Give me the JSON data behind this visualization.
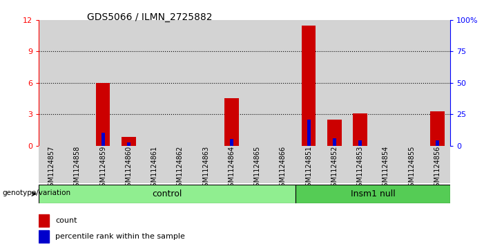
{
  "title": "GDS5066 / ILMN_2725882",
  "samples": [
    "GSM1124857",
    "GSM1124858",
    "GSM1124859",
    "GSM1124860",
    "GSM1124861",
    "GSM1124862",
    "GSM1124863",
    "GSM1124864",
    "GSM1124865",
    "GSM1124866",
    "GSM1124851",
    "GSM1124852",
    "GSM1124853",
    "GSM1124854",
    "GSM1124855",
    "GSM1124856"
  ],
  "count_values": [
    0,
    0,
    6.0,
    0.8,
    0,
    0,
    0,
    4.5,
    0,
    0,
    11.5,
    2.5,
    3.1,
    0,
    0,
    3.3
  ],
  "percentile_values": [
    0,
    0,
    1.2,
    0.3,
    0,
    0,
    0,
    0.6,
    0,
    0,
    2.5,
    0.7,
    0.5,
    0,
    0,
    0.5
  ],
  "count_color": "#cc0000",
  "percentile_color": "#0000cc",
  "bar_bg_color": "#d3d3d3",
  "control_bg": "#90ee90",
  "insm1_bg": "#55cc55",
  "ylim_left": [
    0,
    12
  ],
  "ylim_right": [
    0,
    100
  ],
  "yticks_left": [
    0,
    3,
    6,
    9,
    12
  ],
  "yticks_right": [
    0,
    25,
    50,
    75,
    100
  ],
  "ytick_labels_right": [
    "0",
    "25",
    "50",
    "75",
    "100%"
  ],
  "control_label": "control",
  "insm1_label": "Insm1 null",
  "genotype_label": "genotype/variation",
  "legend_count": "count",
  "legend_percentile": "percentile rank within the sample",
  "control_count": 10,
  "insm1_count": 6,
  "bar_width": 0.55,
  "grid_ticks": [
    3,
    6,
    9
  ]
}
